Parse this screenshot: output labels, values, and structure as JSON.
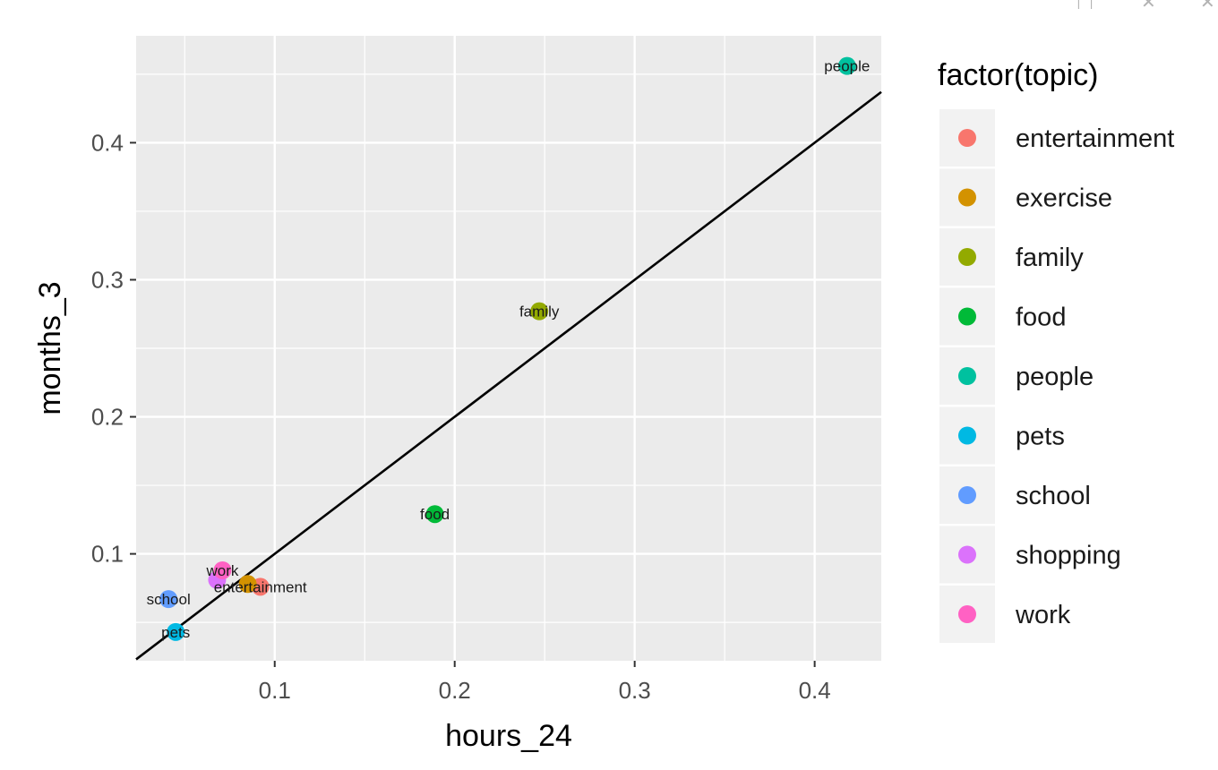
{
  "window": {
    "icons": [
      "export-icon",
      "close-icon",
      "close-icon"
    ],
    "icon_glyphs": [
      "□",
      "✕",
      "✕"
    ]
  },
  "chart_data": {
    "type": "scatter",
    "xlabel": "hours_24",
    "ylabel": "months_3",
    "xlim": [
      0.023,
      0.437
    ],
    "ylim": [
      0.022,
      0.478
    ],
    "x_ticks": [
      0.1,
      0.2,
      0.3,
      0.4
    ],
    "x_tick_labels": [
      "0.1",
      "0.2",
      "0.3",
      "0.4"
    ],
    "y_ticks": [
      0.1,
      0.2,
      0.3,
      0.4
    ],
    "y_tick_labels": [
      "0.1",
      "0.2",
      "0.3",
      "0.4"
    ],
    "grid": true,
    "legend_title": "factor(topic)",
    "legend_position": "right",
    "reference_line": {
      "type": "identity",
      "slope": 1,
      "intercept": 0,
      "color": "#000000"
    },
    "points": [
      {
        "label": "entertainment",
        "x": 0.092,
        "y": 0.076,
        "color": "#F8766D"
      },
      {
        "label": "exercise",
        "x": 0.085,
        "y": 0.078,
        "color": "#D39200"
      },
      {
        "label": "family",
        "x": 0.247,
        "y": 0.277,
        "color": "#93AA00"
      },
      {
        "label": "food",
        "x": 0.189,
        "y": 0.129,
        "color": "#00BA38"
      },
      {
        "label": "people",
        "x": 0.418,
        "y": 0.456,
        "color": "#00C19F"
      },
      {
        "label": "pets",
        "x": 0.045,
        "y": 0.043,
        "color": "#00B9E3"
      },
      {
        "label": "school",
        "x": 0.041,
        "y": 0.067,
        "color": "#619CFF"
      },
      {
        "label": "shopping",
        "x": 0.068,
        "y": 0.081,
        "color": "#DB72FB"
      },
      {
        "label": "work",
        "x": 0.071,
        "y": 0.088,
        "color": "#FF61C3"
      }
    ],
    "point_text": [
      {
        "text": "entertainment",
        "x": 0.092,
        "y": 0.076
      },
      {
        "text": "family",
        "x": 0.247,
        "y": 0.277
      },
      {
        "text": "food",
        "x": 0.189,
        "y": 0.129
      },
      {
        "text": "people",
        "x": 0.418,
        "y": 0.456
      },
      {
        "text": "pets",
        "x": 0.045,
        "y": 0.043
      },
      {
        "text": "school",
        "x": 0.041,
        "y": 0.067
      },
      {
        "text": "work",
        "x": 0.071,
        "y": 0.088
      }
    ],
    "legend": [
      {
        "label": "entertainment",
        "color": "#F8766D"
      },
      {
        "label": "exercise",
        "color": "#D39200"
      },
      {
        "label": "family",
        "color": "#93AA00"
      },
      {
        "label": "food",
        "color": "#00BA38"
      },
      {
        "label": "people",
        "color": "#00C19F"
      },
      {
        "label": "pets",
        "color": "#00B9E3"
      },
      {
        "label": "school",
        "color": "#619CFF"
      },
      {
        "label": "shopping",
        "color": "#DB72FB"
      },
      {
        "label": "work",
        "color": "#FF61C3"
      }
    ]
  }
}
